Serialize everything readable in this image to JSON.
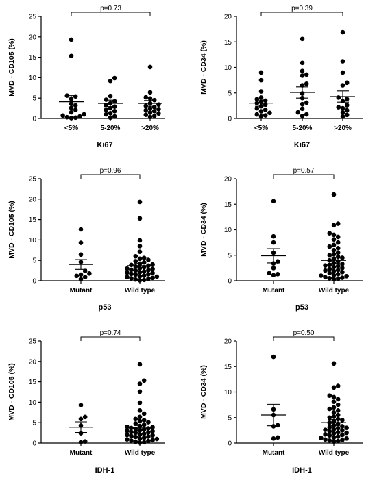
{
  "chart_data": [
    {
      "type": "scatter",
      "ylabel": "MVD - CD105 (%)",
      "xlabel": "Ki67",
      "ylim": [
        0,
        25
      ],
      "yticks": [
        0,
        5,
        10,
        15,
        20,
        25
      ],
      "categories": [
        "<5%",
        "5-20%",
        ">20%"
      ],
      "pvalue": "p=0.73",
      "compare": [
        0,
        2
      ],
      "groups": [
        {
          "values": [
            19.3,
            15.3,
            5.6,
            5.4,
            4.8,
            3.6,
            3.2,
            2.6,
            2.1,
            1.5,
            1.0,
            0.7,
            0.5,
            0.3,
            0.2,
            0.1
          ],
          "mean": 4.1,
          "sem": 1.5
        },
        {
          "values": [
            9.9,
            9.2,
            5.5,
            4.6,
            4.2,
            3.7,
            3.3,
            2.9,
            2.5,
            2.1,
            1.8,
            1.3,
            1.0,
            0.5,
            0.2
          ],
          "mean": 3.7,
          "sem": 0.8
        },
        {
          "values": [
            12.6,
            6.4,
            5.2,
            4.9,
            4.5,
            3.7,
            3.4,
            3.1,
            2.8,
            2.5,
            2.3,
            2.0,
            1.8,
            1.5,
            1.2,
            0.9,
            0.6,
            0.4
          ],
          "mean": 3.7,
          "sem": 0.7
        }
      ]
    },
    {
      "type": "scatter",
      "ylabel": "MVD - CD34 (%)",
      "xlabel": "Ki67",
      "ylim": [
        0,
        20
      ],
      "yticks": [
        0,
        5,
        10,
        15,
        20
      ],
      "categories": [
        "<5%",
        "5-20%",
        ">20%"
      ],
      "pvalue": "p=0.39",
      "compare": [
        0,
        2
      ],
      "groups": [
        {
          "values": [
            9.0,
            7.5,
            5.3,
            4.1,
            3.8,
            3.5,
            3.2,
            3.0,
            2.7,
            2.4,
            2.0,
            1.7,
            1.4,
            1.1,
            0.8,
            0.6,
            0.4
          ],
          "mean": 3.0,
          "sem": 0.6
        },
        {
          "values": [
            15.6,
            10.9,
            9.3,
            8.6,
            8.4,
            6.8,
            6.5,
            4.9,
            4.0,
            3.1,
            2.8,
            1.9,
            1.2,
            0.8,
            0.5
          ],
          "mean": 5.1,
          "sem": 1.1
        },
        {
          "values": [
            16.9,
            11.2,
            9.0,
            7.0,
            6.5,
            4.1,
            3.8,
            3.4,
            2.6,
            2.2,
            2.0,
            1.6,
            1.2,
            0.7,
            0.4
          ],
          "mean": 4.3,
          "sem": 1.1
        }
      ]
    },
    {
      "type": "scatter",
      "ylabel": "MVD - CD105 (%)",
      "xlabel": "p53",
      "ylim": [
        0,
        25
      ],
      "yticks": [
        0,
        5,
        10,
        15,
        20,
        25
      ],
      "categories": [
        "Mutant",
        "Wild type"
      ],
      "pvalue": "p=0.96",
      "compare": [
        0,
        1
      ],
      "groups": [
        {
          "values": [
            12.6,
            9.3,
            6.4,
            4.6,
            2.4,
            1.8,
            1.5,
            1.2,
            0.9,
            0.4
          ],
          "mean": 4.0,
          "sem": 1.2
        },
        {
          "values": [
            19.3,
            15.3,
            9.9,
            8.5,
            7.1,
            6.0,
            5.6,
            5.4,
            5.1,
            4.8,
            4.5,
            4.2,
            3.9,
            3.7,
            3.5,
            3.3,
            3.1,
            2.9,
            2.7,
            2.5,
            2.3,
            2.1,
            1.9,
            1.7,
            1.5,
            1.3,
            1.1,
            0.9,
            0.7,
            0.5,
            0.3,
            0.2,
            0.1,
            2.0,
            1.0,
            3.0,
            4.0,
            0.6,
            1.6,
            2.6
          ],
          "mean": 3.7,
          "sem": 0.6
        }
      ]
    },
    {
      "type": "scatter",
      "ylabel": "MVD - CD34 (%)",
      "xlabel": "p53",
      "ylim": [
        0,
        20
      ],
      "yticks": [
        0,
        5,
        10,
        15,
        20
      ],
      "categories": [
        "Mutant",
        "Wild type"
      ],
      "pvalue": "p=0.57",
      "compare": [
        0,
        1
      ],
      "groups": [
        {
          "values": [
            15.6,
            8.7,
            7.5,
            5.5,
            3.8,
            3.4,
            2.5,
            1.5,
            1.3,
            1.1
          ],
          "mean": 4.9,
          "sem": 1.4
        },
        {
          "values": [
            16.9,
            11.2,
            10.9,
            9.3,
            9.0,
            8.6,
            8.1,
            7.5,
            7.0,
            6.7,
            6.4,
            6.0,
            5.5,
            5.0,
            4.7,
            4.3,
            4.0,
            3.8,
            3.5,
            3.3,
            3.1,
            2.9,
            2.7,
            2.5,
            2.3,
            2.1,
            1.9,
            1.7,
            1.5,
            1.3,
            1.1,
            0.9,
            0.7,
            0.5,
            0.4,
            0.3,
            2.0,
            1.0,
            3.0,
            4.5,
            5.2,
            0.6
          ],
          "mean": 4.0,
          "sem": 0.6
        }
      ]
    },
    {
      "type": "scatter",
      "ylabel": "MVD - CD105 (%)",
      "xlabel": "IDH-1",
      "ylim": [
        0,
        25
      ],
      "yticks": [
        0,
        5,
        10,
        15,
        20,
        25
      ],
      "categories": [
        "Mutant",
        "Wild type"
      ],
      "pvalue": "p=0.74",
      "compare": [
        0,
        1
      ],
      "groups": [
        {
          "values": [
            9.3,
            6.4,
            5.9,
            4.3,
            2.4,
            0.4,
            0.2
          ],
          "mean": 3.9,
          "sem": 1.3
        },
        {
          "values": [
            19.3,
            15.3,
            14.5,
            12.6,
            9.9,
            8.0,
            7.2,
            6.4,
            5.9,
            5.6,
            5.4,
            5.1,
            4.8,
            4.5,
            4.2,
            3.9,
            3.7,
            3.5,
            3.3,
            3.1,
            2.9,
            2.7,
            2.5,
            2.3,
            2.1,
            1.9,
            1.7,
            1.5,
            1.3,
            1.1,
            0.9,
            0.7,
            0.5,
            0.3,
            0.2,
            0.1,
            2.0,
            1.0,
            3.0,
            4.0,
            0.6,
            1.6,
            2.6,
            3.6
          ],
          "mean": 3.7,
          "sem": 0.6
        }
      ]
    },
    {
      "type": "scatter",
      "ylabel": "MVD - CD34 (%)",
      "xlabel": "IDH-1",
      "ylim": [
        0,
        20
      ],
      "yticks": [
        0,
        5,
        10,
        15,
        20
      ],
      "categories": [
        "Mutant",
        "Wild type"
      ],
      "pvalue": "p=0.50",
      "compare": [
        0,
        1
      ],
      "groups": [
        {
          "values": [
            16.9,
            6.6,
            5.5,
            3.5,
            3.3,
            1.1,
            0.9
          ],
          "mean": 5.5,
          "sem": 2.1
        },
        {
          "values": [
            15.6,
            11.2,
            10.9,
            9.3,
            9.0,
            8.6,
            8.1,
            7.5,
            7.0,
            6.7,
            6.4,
            6.0,
            5.5,
            5.0,
            4.7,
            4.3,
            4.0,
            3.8,
            3.5,
            3.3,
            3.1,
            2.9,
            2.7,
            2.5,
            2.3,
            2.1,
            1.9,
            1.7,
            1.5,
            1.3,
            1.1,
            0.9,
            0.7,
            0.5,
            0.4,
            0.3,
            2.0,
            1.0,
            3.0,
            4.5,
            5.2,
            0.6,
            1.6,
            2.6
          ],
          "mean": 4.0,
          "sem": 0.6
        }
      ]
    }
  ]
}
